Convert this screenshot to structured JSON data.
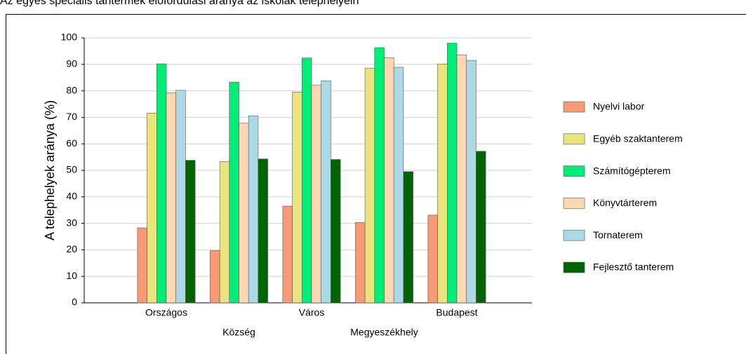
{
  "chart_data": {
    "type": "bar",
    "title": "Az egyes speciális tantermek előfordulási aránya az iskolák telephelyein",
    "y_label": "A telephelyek aránya (%)",
    "categories": [
      "Országos",
      "Község",
      "Város",
      "Megyeszékhely",
      "Budapest"
    ],
    "series": [
      {
        "name": "Nyelvi labor",
        "color": "#f79a75",
        "values": [
          28.3,
          19.7,
          36.5,
          30.3,
          33.1
        ]
      },
      {
        "name": "Egyéb szaktanterem",
        "color": "#e9e47d",
        "values": [
          71.6,
          53.3,
          79.5,
          88.6,
          90.1
        ]
      },
      {
        "name": "Számítógépterem",
        "color": "#00ee77",
        "values": [
          90.2,
          83.3,
          92.4,
          96.3,
          98.0
        ]
      },
      {
        "name": "Könyvtárterem",
        "color": "#fdd7b1",
        "values": [
          79.3,
          67.8,
          82.1,
          92.5,
          93.6
        ]
      },
      {
        "name": "Tornaterem",
        "color": "#add8e6",
        "values": [
          80.2,
          70.6,
          83.8,
          88.9,
          91.5
        ]
      },
      {
        "name": "Fejlesztő tanterem",
        "color": "#006400",
        "values": [
          53.8,
          54.3,
          54.1,
          49.5,
          57.2
        ]
      }
    ],
    "ylim": [
      0,
      100
    ],
    "yticks": [
      0,
      10,
      20,
      30,
      40,
      50,
      60,
      70,
      80,
      90,
      100
    ],
    "grid": true,
    "legend": "right"
  }
}
